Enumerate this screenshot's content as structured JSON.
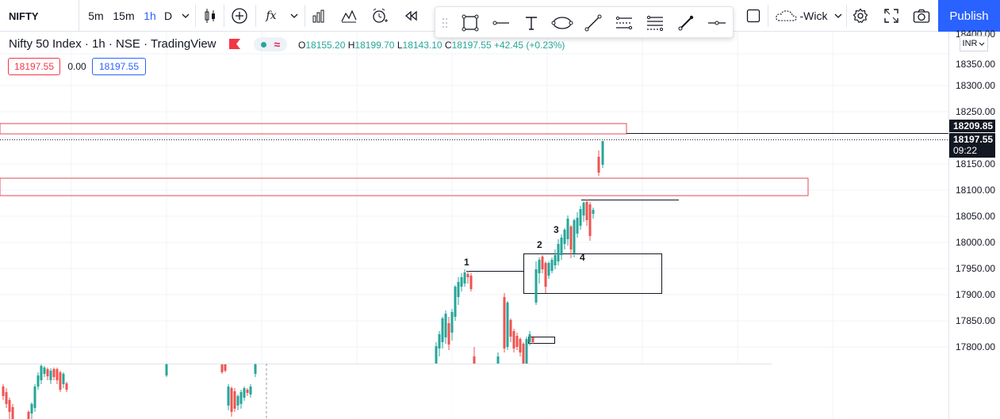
{
  "toolbar": {
    "symbol": "NIFTY",
    "intervals": [
      "5m",
      "15m",
      "1h",
      "D"
    ],
    "active_interval": "1h",
    "wick_label": "-Wick",
    "publish_label": "Publish"
  },
  "legend": {
    "title": "Nifty 50 Index · 1h · NSE · TradingView",
    "open_label": "O",
    "open": "18155.20",
    "high_label": "H",
    "high": "18199.70",
    "low_label": "L",
    "low": "18143.10",
    "close_label": "C",
    "close": "18197.55",
    "change": "+42.45 (+0.23%)",
    "sell_price": "18197.55",
    "spread": "0.00",
    "buy_price": "18197.55"
  },
  "price_axis": {
    "currency": "INR",
    "ticks": [
      "18400.00",
      "18350.00",
      "18300.00",
      "18250.00",
      "18200.00",
      "18150.00",
      "18100.00",
      "18050.00",
      "18000.00",
      "17950.00",
      "17900.00",
      "17850.00",
      "17800.00"
    ],
    "line_tag": "18209.85",
    "last_price_tag": "18197.55",
    "countdown": "09:22"
  },
  "annotations": {
    "wave_1": "1",
    "wave_2": "2",
    "wave_3": "3",
    "wave_4": "4"
  },
  "colors": {
    "up": "#26a69a",
    "down": "#ef5350",
    "accent": "#2962ff",
    "zone_border": "#e04a5a"
  }
}
